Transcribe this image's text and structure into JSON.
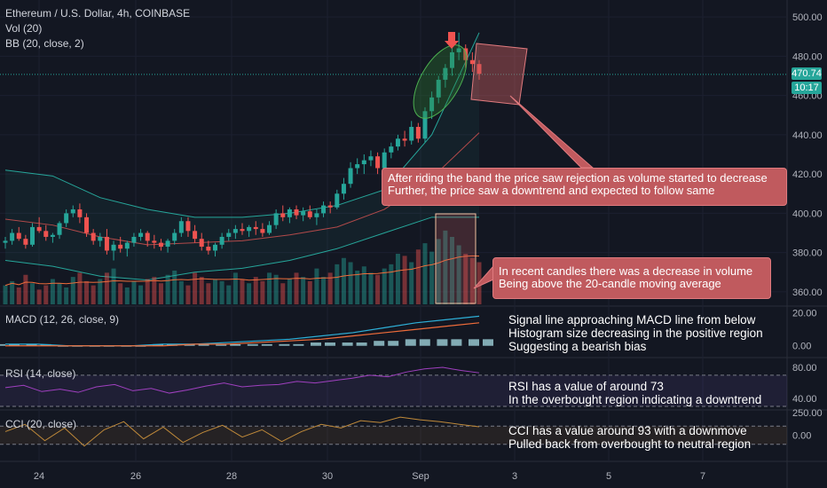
{
  "legend": {
    "symbol": "Ethereum / U.S. Dollar, 4h, COINBASE",
    "vol": "Vol (20)",
    "bb": "BB (20, close, 2)",
    "macd": "MACD (12, 26, close, 9)",
    "rsi": "RSI (14, close)",
    "cci": "CCI (20, close)"
  },
  "price_tags": {
    "last": "470.74",
    "countdown": "10:17"
  },
  "callouts": {
    "top": [
      "After riding the band the price saw rejection as volume started to decrease",
      "Further, the price saw a downtrend and expected to follow same"
    ],
    "volume": [
      "In recent candles there was a decrease in volume",
      "Being above the 20-candle moving average"
    ]
  },
  "notes": {
    "macd": [
      "Signal line approaching MACD line from below",
      "Histogram size decreasing in the positive region",
      "Suggesting a bearish bias"
    ],
    "rsi": [
      "RSI has a value of around 73",
      "In the overbought region indicating a downtrend"
    ],
    "cci": [
      "CCI has a value around 93 with a downmove",
      "Pulled back from overbought to neutral region"
    ]
  },
  "colors": {
    "up": "#26a69a",
    "down": "#ef5350",
    "band": "#26a69a",
    "basis": "#b24a4a",
    "macd": "#2eb0d8",
    "signal": "#ef6c3a",
    "rsi": "#a040c0",
    "cci": "#c08a3a",
    "annotation": "#c05a5e"
  },
  "chart_data": [
    {
      "type": "candlestick",
      "title": "Ethereum / U.S. Dollar, 4h, COINBASE",
      "x_ticks": [
        "24",
        "26",
        "28",
        "30",
        "Sep",
        "3",
        "5",
        "7"
      ],
      "y_ticks": [
        360,
        380,
        400,
        420,
        440,
        460,
        480,
        500
      ],
      "ylim": [
        355,
        505
      ],
      "last_price": 470.74,
      "ohlc": [
        [
          385,
          388,
          382,
          386
        ],
        [
          386,
          392,
          384,
          390
        ],
        [
          390,
          393,
          386,
          387
        ],
        [
          387,
          389,
          382,
          384
        ],
        [
          384,
          395,
          383,
          393
        ],
        [
          393,
          398,
          390,
          391
        ],
        [
          391,
          394,
          386,
          388
        ],
        [
          388,
          390,
          385,
          389
        ],
        [
          389,
          396,
          387,
          395
        ],
        [
          395,
          402,
          393,
          400
        ],
        [
          400,
          404,
          398,
          402
        ],
        [
          402,
          405,
          395,
          398
        ],
        [
          398,
          400,
          388,
          390
        ],
        [
          390,
          392,
          384,
          386
        ],
        [
          386,
          390,
          383,
          388
        ],
        [
          388,
          392,
          379,
          381
        ],
        [
          381,
          386,
          376,
          384
        ],
        [
          384,
          388,
          380,
          382
        ],
        [
          382,
          386,
          378,
          385
        ],
        [
          385,
          390,
          383,
          388
        ],
        [
          388,
          392,
          386,
          390
        ],
        [
          390,
          391,
          383,
          386
        ],
        [
          386,
          389,
          382,
          385
        ],
        [
          385,
          387,
          381,
          383
        ],
        [
          383,
          387,
          380,
          386
        ],
        [
          386,
          392,
          384,
          390
        ],
        [
          390,
          398,
          388,
          396
        ],
        [
          396,
          398,
          388,
          391
        ],
        [
          391,
          394,
          385,
          387
        ],
        [
          387,
          390,
          381,
          383
        ],
        [
          383,
          386,
          379,
          381
        ],
        [
          381,
          385,
          378,
          384
        ],
        [
          384,
          390,
          382,
          388
        ],
        [
          388,
          392,
          386,
          390
        ],
        [
          390,
          394,
          387,
          392
        ],
        [
          392,
          395,
          389,
          391
        ],
        [
          391,
          394,
          388,
          393
        ],
        [
          393,
          396,
          389,
          392
        ],
        [
          392,
          395,
          388,
          390
        ],
        [
          390,
          396,
          389,
          394
        ],
        [
          394,
          402,
          392,
          400
        ],
        [
          400,
          404,
          396,
          398
        ],
        [
          398,
          403,
          395,
          402
        ],
        [
          402,
          404,
          397,
          399
        ],
        [
          399,
          403,
          396,
          401
        ],
        [
          401,
          404,
          397,
          398
        ],
        [
          398,
          402,
          394,
          400
        ],
        [
          400,
          406,
          398,
          404
        ],
        [
          404,
          406,
          400,
          403
        ],
        [
          403,
          412,
          402,
          410
        ],
        [
          410,
          418,
          407,
          415
        ],
        [
          415,
          426,
          413,
          423
        ],
        [
          423,
          428,
          420,
          425
        ],
        [
          425,
          430,
          420,
          427
        ],
        [
          427,
          432,
          424,
          429
        ],
        [
          429,
          431,
          420,
          423
        ],
        [
          423,
          433,
          421,
          431
        ],
        [
          431,
          436,
          428,
          434
        ],
        [
          434,
          440,
          432,
          438
        ],
        [
          438,
          442,
          434,
          437
        ],
        [
          437,
          447,
          435,
          444
        ],
        [
          444,
          446,
          436,
          438
        ],
        [
          438,
          454,
          436,
          452
        ],
        [
          452,
          462,
          448,
          459
        ],
        [
          459,
          470,
          456,
          468
        ],
        [
          468,
          476,
          464,
          474
        ],
        [
          474,
          486,
          470,
          482
        ],
        [
          482,
          492,
          478,
          484
        ],
        [
          484,
          486,
          474,
          478
        ],
        [
          478,
          482,
          472,
          476
        ],
        [
          476,
          478,
          468,
          471
        ]
      ],
      "bollinger": {
        "upper": [
          422,
          419,
          408,
          402,
          398,
          398,
          400,
          404,
          412,
          440,
          492
        ],
        "basis": [
          397,
          394,
          388,
          384,
          385,
          386,
          389,
          393,
          402,
          418,
          441
        ],
        "lower": [
          376,
          373,
          368,
          366,
          370,
          372,
          376,
          382,
          390,
          398,
          398
        ]
      },
      "volume": [
        18,
        22,
        16,
        28,
        20,
        14,
        18,
        24,
        20,
        16,
        26,
        30,
        22,
        18,
        24,
        30,
        34,
        20,
        16,
        22,
        18,
        24,
        26,
        20,
        28,
        32,
        22,
        18,
        30,
        26,
        20,
        24,
        22,
        18,
        30,
        24,
        20,
        26,
        22,
        30,
        28,
        20,
        24,
        30,
        26,
        22,
        34,
        26,
        30,
        38,
        44,
        40,
        32,
        36,
        30,
        28,
        34,
        38,
        48,
        46,
        40,
        52,
        58,
        50,
        62,
        70,
        64,
        56,
        48,
        44,
        40
      ]
    },
    {
      "type": "line",
      "title": "MACD (12, 26, close, 9)",
      "y_ticks": [
        0,
        20
      ],
      "macd": [
        1,
        1,
        0,
        0,
        0,
        1,
        1,
        2,
        3,
        4,
        6,
        8,
        11,
        14,
        16,
        18
      ],
      "signal": [
        0,
        0,
        0,
        0,
        0,
        0,
        1,
        1,
        2,
        3,
        4,
        6,
        8,
        10,
        12,
        14
      ],
      "histogram": [
        1,
        1,
        0,
        0,
        0,
        1,
        1,
        1,
        1,
        1,
        2,
        2,
        3,
        4,
        4,
        4
      ]
    },
    {
      "type": "line",
      "title": "RSI (14, close)",
      "y_ticks": [
        40,
        80
      ],
      "values": [
        54,
        57,
        49,
        52,
        48,
        55,
        58,
        50,
        53,
        47,
        51,
        56,
        60,
        55,
        57,
        58,
        62,
        60,
        63,
        66,
        70,
        68,
        74,
        78,
        80,
        76,
        73
      ]
    },
    {
      "type": "line",
      "title": "CCI (20, close)",
      "y_ticks": [
        0,
        250
      ],
      "values": [
        40,
        120,
        -60,
        80,
        -120,
        60,
        150,
        -40,
        90,
        -80,
        30,
        110,
        -20,
        60,
        -70,
        40,
        120,
        80,
        160,
        140,
        200,
        170,
        150,
        120,
        93
      ]
    }
  ]
}
